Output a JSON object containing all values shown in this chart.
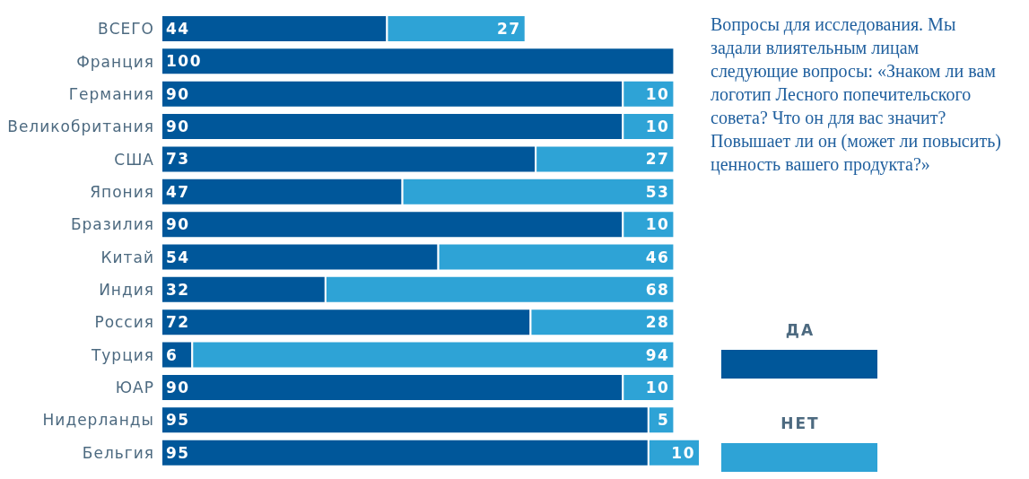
{
  "chart_data": {
    "type": "bar",
    "orientation": "horizontal",
    "stacked": true,
    "data_labels": true,
    "legend": "right",
    "categories": [
      "ВСЕГО",
      "Франция",
      "Германия",
      "Великобритания",
      "США",
      "Япония",
      "Бразилия",
      "Китай",
      "Индия",
      "Россия",
      "Турция",
      "ЮАР",
      "Нидерланды",
      "Бельгия"
    ],
    "series": [
      {
        "name": "ДА",
        "color": "#00579a",
        "values": [
          44,
          100,
          90,
          90,
          73,
          47,
          90,
          54,
          32,
          72,
          6,
          90,
          95,
          95
        ]
      },
      {
        "name": "НЕТ",
        "color": "#2ea3d6",
        "values": [
          27,
          null,
          10,
          10,
          27,
          53,
          10,
          46,
          68,
          28,
          94,
          10,
          5,
          10
        ]
      }
    ],
    "annotations": [
      "Вопросы для исследования. Мы задали влиятельным лицам следующие вопросы: «Знаком ли вам логотип Лесного попечительского совета? Что он для вас значит? Повышает ли он (может ли повысить) ценность вашего продукта?»"
    ]
  }
}
